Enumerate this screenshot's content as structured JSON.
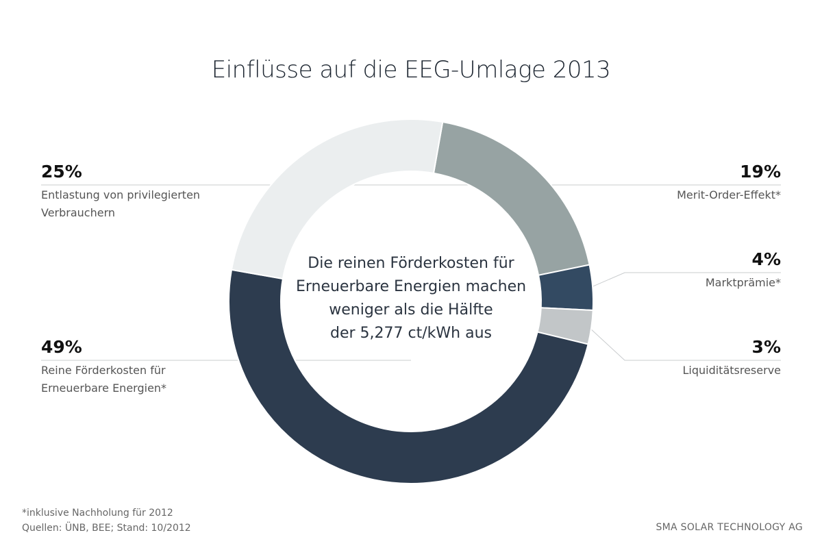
{
  "chart_data": {
    "type": "donut",
    "title": "Einflüsse auf die EEG-Umlage 2013",
    "center_text": [
      "Die reinen Förderkosten für",
      "Erneuerbare Energien machen",
      "weniger als die Hälfte",
      "der 5,277 ct/kWh aus"
    ],
    "series": [
      {
        "label": "Merit-Order-Effekt*",
        "percent_label": "19%",
        "value": 19,
        "color": "#97a3a3"
      },
      {
        "label": "Marktprämie*",
        "percent_label": "4%",
        "value": 4,
        "color": "#334a62"
      },
      {
        "label": "Liquiditätsreserve",
        "percent_label": "3%",
        "value": 3,
        "color": "#c2c6c8"
      },
      {
        "label": "Reine Förderkosten für Erneuerbare Energien*",
        "label_lines": [
          "Reine Förderkosten für",
          "Erneuerbare Energien*"
        ],
        "percent_label": "49%",
        "value": 49,
        "color": "#2d3c4f"
      },
      {
        "label": "Entlastung von privilegierten Verbrauchern",
        "label_lines": [
          "Entlastung von privilegierten",
          "Verbrauchern"
        ],
        "percent_label": "25%",
        "value": 25,
        "color": "#ebeeef"
      }
    ]
  },
  "footnote": {
    "line1": "*inklusive Nachholung für 2012",
    "line2": "Quellen: ÜNB, BEE; Stand: 10/2012"
  },
  "brand": "SMA SOLAR TECHNOLOGY AG"
}
